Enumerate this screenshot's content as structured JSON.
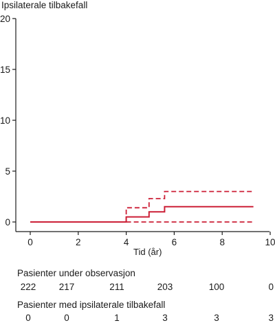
{
  "chart_data": {
    "type": "line",
    "title": "",
    "ylabel": "Ipsilaterale tilbakefall",
    "xlabel": "Tid (år)",
    "xlim": [
      0,
      10
    ],
    "ylim": [
      0,
      20
    ],
    "xticks": [
      0,
      2,
      4,
      6,
      8,
      10
    ],
    "yticks": [
      0,
      5,
      10,
      15,
      20
    ],
    "grid": false,
    "series_color": "#cc1f36",
    "series": [
      {
        "style": "solid",
        "step": true,
        "x": [
          0,
          4.0,
          4.0,
          4.95,
          4.95,
          5.6,
          5.6,
          9.3
        ],
        "y": [
          0,
          0,
          0.5,
          0.5,
          1.0,
          1.0,
          1.5,
          1.5
        ]
      },
      {
        "style": "dashed",
        "step": true,
        "x": [
          4.0,
          4.0,
          4.95,
          4.95,
          5.6,
          5.6,
          9.3
        ],
        "y": [
          0,
          1.4,
          1.4,
          2.3,
          2.3,
          3.0,
          3.0
        ]
      },
      {
        "style": "dashed",
        "step": false,
        "x": [
          4.0,
          9.3
        ],
        "y": [
          0,
          0
        ]
      }
    ]
  },
  "table": {
    "rows": [
      {
        "title": "Pasienter under observasjon",
        "values": [
          "222",
          "217",
          "211",
          "203",
          "100",
          "0"
        ]
      },
      {
        "title": "Pasienter med ipsilaterale tilbakefall",
        "values": [
          "0",
          "0",
          "1",
          "3",
          "3",
          "3"
        ]
      }
    ]
  }
}
